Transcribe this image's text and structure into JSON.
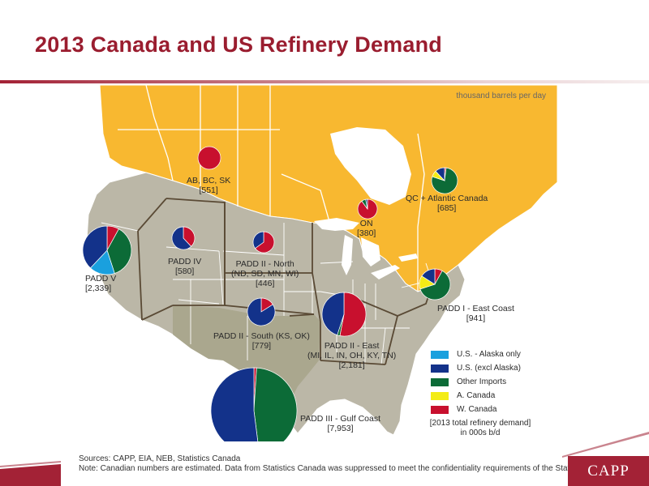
{
  "title": "2013 Canada and US Refinery Demand",
  "map": {
    "unit_note": "thousand barrels per day",
    "colors": {
      "canada_land": "#f8b830",
      "us_land": "#bbb7a7",
      "padd3_land": "#aaa78e",
      "water": "#ffffff",
      "border": "#ffffff",
      "padd_border": "#5a4a35"
    },
    "regions": [
      {
        "name": "AB, BC, SK",
        "demand": "[551]",
        "shares": {
          "us_alaska_only": 0,
          "us_excl_alaska": 0,
          "other_imports": 0,
          "a_canada": 0,
          "w_canada": 100
        }
      },
      {
        "name": "ON",
        "demand": "[380]",
        "shares": {
          "us_alaska_only": 0,
          "us_excl_alaska": 3,
          "other_imports": 7,
          "a_canada": 0,
          "w_canada": 90
        }
      },
      {
        "name": "QC + Atlantic Canada",
        "demand": "[685]",
        "shares": {
          "us_alaska_only": 0,
          "us_excl_alaska": 12,
          "other_imports": 78,
          "a_canada": 8,
          "w_canada": 2
        }
      },
      {
        "name": "PADD V",
        "demand": "[2,339]",
        "shares": {
          "us_alaska_only": 17,
          "us_excl_alaska": 38,
          "other_imports": 37,
          "a_canada": 0,
          "w_canada": 8
        }
      },
      {
        "name": "PADD IV",
        "demand": "[580]",
        "shares": {
          "us_alaska_only": 0,
          "us_excl_alaska": 62,
          "other_imports": 0,
          "a_canada": 0,
          "w_canada": 38
        }
      },
      {
        "name": "PADD II - North",
        "sub": "(ND, SD, MN, WI)",
        "demand": "[446]",
        "shares": {
          "us_alaska_only": 0,
          "us_excl_alaska": 35,
          "other_imports": 0,
          "a_canada": 0,
          "w_canada": 65
        }
      },
      {
        "name": "PADD II - South (KS, OK)",
        "demand": "[779]",
        "shares": {
          "us_alaska_only": 0,
          "us_excl_alaska": 84,
          "other_imports": 0,
          "a_canada": 0,
          "w_canada": 16
        }
      },
      {
        "name": "PADD II - East",
        "sub": "(MI, IL, IN, OH, KY, TN)",
        "demand": "[2,181]",
        "shares": {
          "us_alaska_only": 0,
          "us_excl_alaska": 45,
          "other_imports": 2,
          "a_canada": 0,
          "w_canada": 53
        }
      },
      {
        "name": "PADD I - East Coast",
        "demand": "[941]",
        "shares": {
          "us_alaska_only": 0,
          "us_excl_alaska": 16,
          "other_imports": 62,
          "a_canada": 14,
          "w_canada": 8
        }
      },
      {
        "name": "PADD III - Gulf Coast",
        "demand": "[7,953]",
        "shares": {
          "us_alaska_only": 0,
          "us_excl_alaska": 52,
          "other_imports": 47,
          "a_canada": 0,
          "w_canada": 1
        }
      }
    ]
  },
  "legend": {
    "items": [
      {
        "key": "us_alaska_only",
        "label": "U.S. - Alaska only",
        "color": "#1aa0de"
      },
      {
        "key": "us_excl_alaska",
        "label": "U.S. (excl Alaska)",
        "color": "#13328a"
      },
      {
        "key": "other_imports",
        "label": "Other Imports",
        "color": "#0c6b37"
      },
      {
        "key": "a_canada",
        "label": "A. Canada",
        "color": "#f3ec16"
      },
      {
        "key": "w_canada",
        "label": "W. Canada",
        "color": "#c8102e"
      }
    ],
    "total_note_line1": "[2013 total refinery demand]",
    "total_note_line2": "in 000s b/d"
  },
  "footer": {
    "sources": "Sources: CAPP, EIA, NEB, Statistics Canada",
    "note": "Note: Canadian numbers are estimated. Data from Statistics Canada was suppressed to meet the confidentiality requirements of the Statistics Act."
  },
  "logo": {
    "text": "CAPP",
    "color": "#a32236"
  }
}
